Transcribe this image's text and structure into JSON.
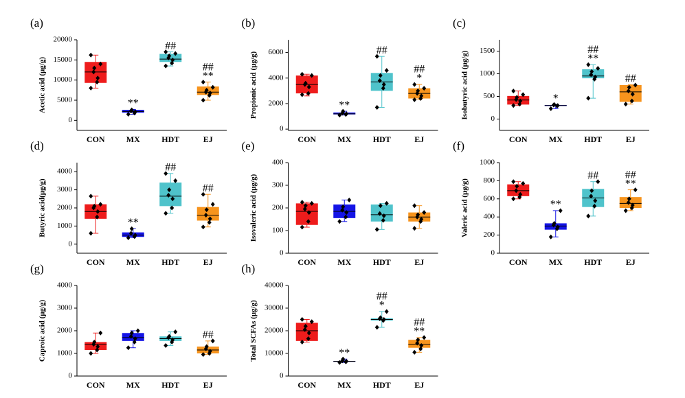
{
  "chart_data": [
    {
      "type": "box",
      "label": "(a)",
      "ylabel": "Acetic acid (μg/g)",
      "categories": [
        "CON",
        "MX",
        "HDT",
        "EJ"
      ],
      "colors": [
        "#ee1c1c",
        "#1414e6",
        "#4fc3cb",
        "#f7941d"
      ],
      "ylim": [
        -2500,
        20000
      ],
      "yticks": [
        0,
        5000,
        10000,
        15000,
        20000
      ],
      "boxes": [
        {
          "low": 8000,
          "q1": 9300,
          "median": 12000,
          "q3": 14500,
          "high": 16200,
          "points": [
            8000,
            9500,
            10500,
            12000,
            13000,
            14000,
            16200
          ],
          "annotations": []
        },
        {
          "low": 1500,
          "q1": 1900,
          "median": 2200,
          "q3": 2600,
          "high": 2700,
          "points": [
            1500,
            1800,
            2100,
            2300,
            2600
          ],
          "annotations": [
            "**"
          ]
        },
        {
          "low": 13500,
          "q1": 14500,
          "median": 15200,
          "q3": 16500,
          "high": 17000,
          "points": [
            13500,
            14200,
            15000,
            15500,
            16000,
            16600,
            17000
          ],
          "annotations": [
            "##"
          ]
        },
        {
          "low": 5000,
          "q1": 6300,
          "median": 7000,
          "q3": 8400,
          "high": 9500,
          "points": [
            5000,
            6200,
            6800,
            7000,
            7500,
            8200,
            9500
          ],
          "annotations": [
            "##",
            "**"
          ]
        }
      ]
    },
    {
      "type": "box",
      "label": "(b)",
      "ylabel": "Propionic acid (μg/g)",
      "categories": [
        "CON",
        "MX",
        "HDT",
        "EJ"
      ],
      "colors": [
        "#ee1c1c",
        "#1414e6",
        "#4fc3cb",
        "#f7941d"
      ],
      "ylim": [
        -100,
        7000
      ],
      "yticks": [
        0,
        2000,
        4000,
        6000
      ],
      "boxes": [
        {
          "low": 2600,
          "q1": 2800,
          "median": 3500,
          "q3": 4200,
          "high": 4300,
          "points": [
            2700,
            2800,
            3300,
            3500,
            3600,
            4200,
            4300
          ],
          "annotations": []
        },
        {
          "low": 1100,
          "q1": 1150,
          "median": 1200,
          "q3": 1300,
          "high": 1400,
          "points": [
            1100,
            1150,
            1200,
            1250,
            1400
          ],
          "annotations": [
            "**"
          ]
        },
        {
          "low": 1700,
          "q1": 3000,
          "median": 3700,
          "q3": 4400,
          "high": 5700,
          "points": [
            1700,
            3200,
            3500,
            3800,
            4200,
            4600,
            5700
          ],
          "annotations": [
            "##"
          ]
        },
        {
          "low": 2300,
          "q1": 2400,
          "median": 2800,
          "q3": 3200,
          "high": 3500,
          "points": [
            2300,
            2400,
            2600,
            2800,
            3000,
            3200,
            3500
          ],
          "annotations": [
            "##",
            "*"
          ]
        }
      ]
    },
    {
      "type": "box",
      "label": "(c)",
      "ylabel": "Isobutyric acid (μg/g)",
      "categories": [
        "CON",
        "MX",
        "HDT",
        "EJ"
      ],
      "colors": [
        "#ee1c1c",
        "#1414e6",
        "#4fc3cb",
        "#f7941d"
      ],
      "ylim": [
        -250,
        1750
      ],
      "yticks": [
        0,
        500,
        1000,
        1500
      ],
      "boxes": [
        {
          "low": 300,
          "q1": 320,
          "median": 420,
          "q3": 510,
          "high": 620,
          "points": [
            300,
            330,
            400,
            430,
            480,
            540,
            620
          ],
          "annotations": []
        },
        {
          "low": 230,
          "q1": 290,
          "median": 300,
          "q3": 310,
          "high": 320,
          "points": [
            230,
            290,
            300,
            310,
            320
          ],
          "annotations": [
            "*"
          ]
        },
        {
          "low": 460,
          "q1": 900,
          "median": 950,
          "q3": 1100,
          "high": 1200,
          "points": [
            460,
            880,
            930,
            980,
            1050,
            1120,
            1200
          ],
          "annotations": [
            "##",
            "**"
          ]
        },
        {
          "low": 330,
          "q1": 380,
          "median": 600,
          "q3": 750,
          "high": 760,
          "points": [
            330,
            400,
            550,
            620,
            700,
            750
          ],
          "annotations": [
            "##"
          ]
        }
      ]
    },
    {
      "type": "box",
      "label": "(d)",
      "ylabel": "Butyric acid(μg/g)",
      "categories": [
        "CON",
        "MX",
        "HDT",
        "EJ"
      ],
      "colors": [
        "#ee1c1c",
        "#1414e6",
        "#4fc3cb",
        "#f7941d"
      ],
      "ylim": [
        -500,
        4500
      ],
      "yticks": [
        0,
        1000,
        2000,
        3000,
        4000
      ],
      "boxes": [
        {
          "low": 600,
          "q1": 1400,
          "median": 1800,
          "q3": 2200,
          "high": 2650,
          "points": [
            600,
            1500,
            1800,
            2000,
            2100,
            2200,
            2650
          ],
          "annotations": []
        },
        {
          "low": 350,
          "q1": 400,
          "median": 500,
          "q3": 650,
          "high": 850,
          "points": [
            350,
            420,
            500,
            600,
            850
          ],
          "annotations": [
            "**"
          ]
        },
        {
          "low": 1700,
          "q1": 2100,
          "median": 2650,
          "q3": 3400,
          "high": 3900,
          "points": [
            1700,
            2000,
            2500,
            2700,
            3000,
            3500,
            3900
          ],
          "annotations": [
            "##"
          ]
        },
        {
          "low": 950,
          "q1": 1300,
          "median": 1600,
          "q3": 2050,
          "high": 2750,
          "points": [
            950,
            1200,
            1400,
            1600,
            1900,
            2200,
            2750
          ],
          "annotations": [
            "##"
          ]
        }
      ]
    },
    {
      "type": "box",
      "label": "(e)",
      "ylabel": "Isovaleric acid (μg/g)",
      "categories": [
        "CON",
        "MX",
        "HDT",
        "EJ"
      ],
      "colors": [
        "#ee1c1c",
        "#1414e6",
        "#4fc3cb",
        "#f7941d"
      ],
      "ylim": [
        0,
        400
      ],
      "yticks": [
        0,
        100,
        200,
        300,
        400
      ],
      "boxes": [
        {
          "low": 115,
          "q1": 125,
          "median": 185,
          "q3": 220,
          "high": 225,
          "points": [
            115,
            140,
            180,
            195,
            210,
            220,
            225
          ],
          "annotations": []
        },
        {
          "low": 140,
          "q1": 155,
          "median": 185,
          "q3": 215,
          "high": 235,
          "points": [
            140,
            160,
            180,
            190,
            205,
            235
          ],
          "annotations": []
        },
        {
          "low": 105,
          "q1": 140,
          "median": 170,
          "q3": 215,
          "high": 220,
          "points": [
            105,
            145,
            165,
            175,
            210,
            220
          ],
          "annotations": []
        },
        {
          "low": 110,
          "q1": 140,
          "median": 160,
          "q3": 180,
          "high": 210,
          "points": [
            110,
            140,
            150,
            160,
            170,
            180,
            210
          ],
          "annotations": []
        }
      ]
    },
    {
      "type": "box",
      "label": "(f)",
      "ylabel": "Valeric acid (μg/g)",
      "categories": [
        "CON",
        "MX",
        "HDT",
        "EJ"
      ],
      "colors": [
        "#ee1c1c",
        "#1414e6",
        "#4fc3cb",
        "#f7941d"
      ],
      "ylim": [
        0,
        1000
      ],
      "yticks": [
        0,
        200,
        400,
        600,
        800,
        1000
      ],
      "boxes": [
        {
          "low": 600,
          "q1": 630,
          "median": 690,
          "q3": 760,
          "high": 790,
          "points": [
            600,
            620,
            650,
            690,
            740,
            770,
            790
          ],
          "annotations": []
        },
        {
          "low": 180,
          "q1": 260,
          "median": 300,
          "q3": 330,
          "high": 470,
          "points": [
            180,
            270,
            290,
            310,
            330,
            470
          ],
          "annotations": [
            "**"
          ]
        },
        {
          "low": 410,
          "q1": 510,
          "median": 610,
          "q3": 710,
          "high": 790,
          "points": [
            410,
            520,
            580,
            630,
            690,
            790
          ],
          "annotations": [
            "##"
          ]
        },
        {
          "low": 470,
          "q1": 500,
          "median": 550,
          "q3": 620,
          "high": 700,
          "points": [
            470,
            500,
            530,
            560,
            600,
            700
          ],
          "annotations": [
            "##",
            "**"
          ]
        }
      ]
    },
    {
      "type": "box",
      "label": "(g)",
      "ylabel": "Caproic acid (μg/g)",
      "categories": [
        "CON",
        "MX",
        "HDT",
        "EJ"
      ],
      "colors": [
        "#ee1c1c",
        "#1414e6",
        "#4fc3cb",
        "#f7941d"
      ],
      "ylim": [
        0,
        4000
      ],
      "yticks": [
        0,
        1000,
        2000,
        3000,
        4000
      ],
      "boxes": [
        {
          "low": 1000,
          "q1": 1150,
          "median": 1400,
          "q3": 1500,
          "high": 1900,
          "points": [
            1000,
            1150,
            1300,
            1400,
            1500,
            1900
          ],
          "annotations": []
        },
        {
          "low": 1250,
          "q1": 1550,
          "median": 1700,
          "q3": 1900,
          "high": 2000,
          "points": [
            1250,
            1500,
            1650,
            1750,
            1900,
            2000
          ],
          "annotations": []
        },
        {
          "low": 1350,
          "q1": 1550,
          "median": 1650,
          "q3": 1750,
          "high": 1950,
          "points": [
            1350,
            1500,
            1600,
            1700,
            1750,
            1950
          ],
          "annotations": []
        },
        {
          "low": 950,
          "q1": 1000,
          "median": 1150,
          "q3": 1300,
          "high": 1550,
          "points": [
            950,
            1000,
            1100,
            1200,
            1300,
            1550
          ],
          "annotations": [
            "##"
          ]
        }
      ]
    },
    {
      "type": "box",
      "label": "(h)",
      "ylabel": "Total SCFAs (μg/g)",
      "categories": [
        "CON",
        "MX",
        "HDT",
        "EJ"
      ],
      "colors": [
        "#ee1c1c",
        "#1414e6",
        "#4fc3cb",
        "#f7941d"
      ],
      "ylim": [
        0,
        40000
      ],
      "yticks": [
        0,
        10000,
        20000,
        30000,
        40000
      ],
      "boxes": [
        {
          "low": 15000,
          "q1": 15500,
          "median": 20000,
          "q3": 23500,
          "high": 25000,
          "points": [
            15000,
            16500,
            19000,
            20500,
            22000,
            24000,
            25000
          ],
          "annotations": []
        },
        {
          "low": 6000,
          "q1": 6300,
          "median": 6500,
          "q3": 6600,
          "high": 7500,
          "points": [
            6000,
            6300,
            6500,
            6700,
            7500
          ],
          "annotations": [
            "**"
          ]
        },
        {
          "low": 21500,
          "q1": 24500,
          "median": 25000,
          "q3": 25500,
          "high": 28500,
          "points": [
            21500,
            24500,
            25000,
            25300,
            25800,
            28500
          ],
          "annotations": [
            "##",
            "*"
          ]
        },
        {
          "low": 10500,
          "q1": 12500,
          "median": 14000,
          "q3": 16000,
          "high": 17000,
          "points": [
            10500,
            12000,
            13500,
            14500,
            16000,
            17000
          ],
          "annotations": [
            "##",
            "**"
          ]
        }
      ]
    }
  ]
}
